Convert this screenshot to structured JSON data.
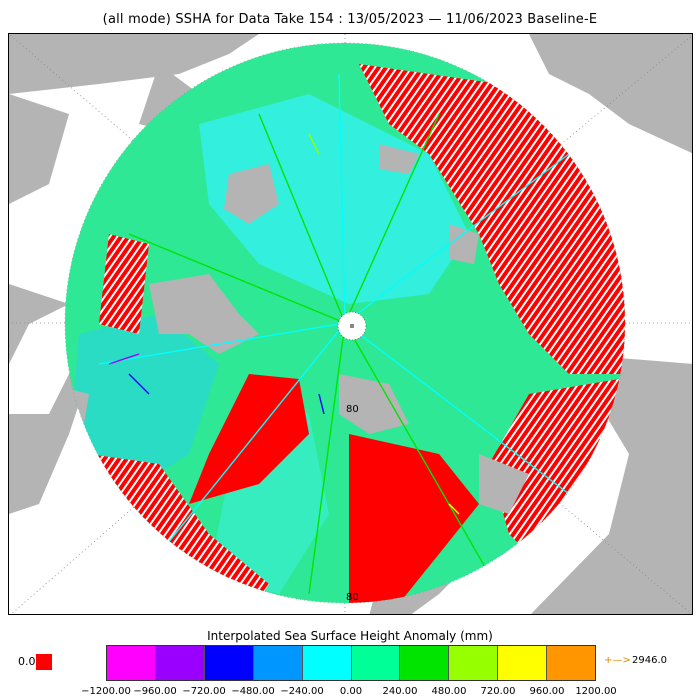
{
  "title": "(all mode) SSHA for Data Take 154 : 13/05/2023 — 11/06/2023 Baseline-E",
  "map": {
    "projection": "north polar stereographic",
    "latitude_labels": [
      "80",
      "80"
    ],
    "land_color": "#b4b4b4",
    "out_of_range_color": "#ff0000",
    "pole_hole_color": "#ffffff"
  },
  "legend": {
    "title": "Interpolated Sea Surface Height Anomaly (mm)",
    "min_label": "0.0",
    "min_color": "#ff0000",
    "max_label": "2946.0",
    "max_arrow": "+—>",
    "bins": [
      {
        "from": -1200,
        "to": -960,
        "color": "#ff00ff"
      },
      {
        "from": -960,
        "to": -720,
        "color": "#9a00ff"
      },
      {
        "from": -720,
        "to": -480,
        "color": "#0000ff"
      },
      {
        "from": -480,
        "to": -240,
        "color": "#0096ff"
      },
      {
        "from": -240,
        "to": 0,
        "color": "#00ffff"
      },
      {
        "from": 0,
        "to": 240,
        "color": "#00ff96"
      },
      {
        "from": 240,
        "to": 480,
        "color": "#00e400"
      },
      {
        "from": 480,
        "to": 720,
        "color": "#96ff00"
      },
      {
        "from": 720,
        "to": 960,
        "color": "#ffff00"
      },
      {
        "from": 960,
        "to": 1200,
        "color": "#ff9600"
      }
    ],
    "tick_labels": [
      "−1200.00",
      "−960.00",
      "−720.00",
      "−480.00",
      "−240.00",
      "0.00",
      "240.00",
      "480.00",
      "720.00",
      "960.00",
      "1200.00"
    ]
  }
}
